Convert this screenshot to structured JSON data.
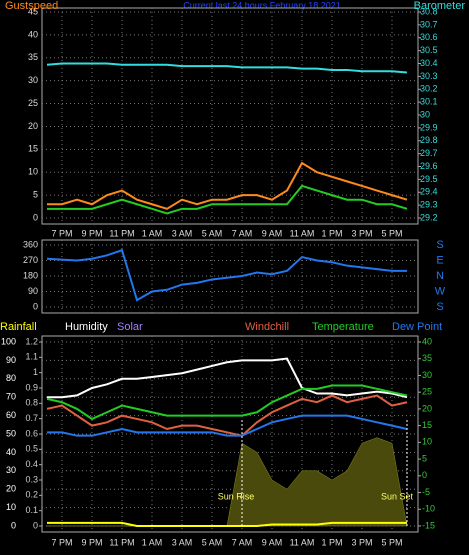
{
  "chart_data": [
    {
      "type": "line",
      "title": "Current last 24 hours February 18 2021",
      "categories": [
        null,
        "7 PM",
        null,
        "9 PM",
        null,
        "11 PM",
        null,
        "1 AM",
        null,
        "3 AM",
        null,
        "5 AM",
        null,
        "7 AM",
        null,
        "9 AM",
        null,
        "11 AM",
        null,
        "1 PM",
        null,
        "3 PM",
        null,
        "5 PM",
        null
      ],
      "ylim": [
        0,
        45
      ],
      "yticks": [
        0,
        5,
        10,
        15,
        20,
        25,
        30,
        35,
        40,
        45
      ],
      "y2lim": [
        29.2,
        30.8
      ],
      "y2ticks": [
        29.2,
        29.3,
        29.4,
        29.5,
        29.6,
        29.7,
        29.8,
        29.9,
        30,
        30.1,
        30.2,
        30.3,
        30.4,
        30.5,
        30.6,
        30.7,
        30.8
      ],
      "grid": true,
      "series": [
        {
          "name": "Gustspeed",
          "color": "#ff8a1c",
          "values": [
            3,
            3,
            4,
            3,
            5,
            6,
            4,
            3,
            2,
            4,
            3,
            4,
            4,
            5,
            5,
            4,
            6,
            12,
            10,
            9,
            8,
            7,
            6,
            5,
            4
          ]
        },
        {
          "color": "#22cc22",
          "values": [
            2,
            2,
            2,
            2,
            3,
            4,
            3,
            2,
            1,
            2,
            2,
            3,
            3,
            3,
            3,
            3,
            3,
            7,
            6,
            5,
            4,
            4,
            3,
            3,
            2
          ]
        },
        {
          "name": "Barometer",
          "color": "#33dddd",
          "axis": "y2",
          "values": [
            30.39,
            30.4,
            30.4,
            30.4,
            30.4,
            30.39,
            30.39,
            30.39,
            30.39,
            30.38,
            30.38,
            30.38,
            30.38,
            30.37,
            30.37,
            30.37,
            30.37,
            30.36,
            30.36,
            30.35,
            30.35,
            30.34,
            30.34,
            30.34,
            30.33
          ]
        }
      ]
    },
    {
      "type": "line",
      "ylim": [
        0,
        360
      ],
      "yticks": [
        0,
        90,
        180,
        270,
        360
      ],
      "grid": true,
      "compass": [
        "S",
        "E",
        "N",
        "W",
        "S"
      ],
      "series": [
        {
          "color": "#2277ee",
          "values": [
            280,
            275,
            270,
            280,
            300,
            330,
            40,
            90,
            100,
            130,
            140,
            160,
            170,
            180,
            200,
            190,
            210,
            290,
            270,
            260,
            240,
            230,
            220,
            210,
            210
          ]
        }
      ]
    },
    {
      "type": "line",
      "categories": [
        null,
        "7 PM",
        null,
        "9 PM",
        null,
        "11 PM",
        null,
        "1 AM",
        null,
        "3 AM",
        null,
        "5 AM",
        null,
        "7 AM",
        null,
        "9 AM",
        null,
        "11 AM",
        null,
        "1 PM",
        null,
        "3 PM",
        null,
        "5 PM",
        null
      ],
      "ylim": [
        0,
        100
      ],
      "yticks": [
        0,
        10,
        20,
        30,
        40,
        50,
        60,
        70,
        80,
        90,
        100
      ],
      "y3lim": [
        0,
        1.2
      ],
      "y3ticks": [
        0,
        0.1,
        0.2,
        0.3,
        0.4,
        0.5,
        0.6,
        0.7,
        0.8,
        0.9,
        1,
        1.1,
        1.2
      ],
      "y2lim": [
        -15,
        40
      ],
      "y2ticks": [
        -15,
        -10,
        -5,
        0,
        5,
        10,
        15,
        20,
        25,
        30,
        35,
        40
      ],
      "grid": true,
      "sunrise": "Sun Rise",
      "sunset": "Sun Set",
      "series": [
        {
          "name": "Solar",
          "type": "area",
          "color": "#4a4a0c",
          "label_color": "#a080ff",
          "values": [
            0,
            0,
            0,
            0,
            0,
            0,
            0,
            0,
            0,
            0,
            0,
            0,
            0,
            45,
            40,
            25,
            20,
            30,
            30,
            25,
            30,
            45,
            48,
            45,
            0
          ]
        },
        {
          "name": "Rainfall",
          "color": "#ffff00",
          "axis": "y3",
          "values": [
            0.02,
            0.02,
            0.02,
            0.02,
            0.02,
            0.02,
            0,
            0,
            0,
            0,
            0,
            0,
            0,
            0,
            0,
            0.01,
            0.01,
            0.01,
            0.01,
            0.02,
            0.02,
            0.02,
            0.02,
            0.02,
            0.02
          ]
        },
        {
          "name": "Humidity",
          "color": "#ffffff",
          "values": [
            70,
            70,
            71,
            75,
            77,
            80,
            80,
            81,
            82,
            83,
            85,
            87,
            89,
            90,
            90,
            90,
            91,
            75,
            72,
            72,
            71,
            72,
            73,
            72,
            70
          ]
        },
        {
          "name": "Windchill",
          "color": "#e06040",
          "axis": "y2",
          "values": [
            20,
            21,
            18,
            15,
            16,
            18,
            17,
            16,
            14,
            15,
            15,
            14,
            13,
            12,
            16,
            19,
            21,
            23,
            22,
            24,
            22,
            23,
            24,
            21,
            22
          ]
        },
        {
          "name": "Temperature",
          "color": "#22cc22",
          "axis": "y2",
          "values": [
            23,
            22,
            20,
            17,
            19,
            21,
            20,
            19,
            18,
            18,
            18,
            18,
            18,
            18,
            19,
            22,
            24,
            26,
            26,
            27,
            27,
            27,
            26,
            25,
            24
          ]
        },
        {
          "name": "Dew Point",
          "color": "#2277ee",
          "axis": "y2",
          "values": [
            13,
            13,
            12,
            12,
            13,
            14,
            13,
            13,
            13,
            13,
            13,
            13,
            12,
            12,
            14,
            16,
            17,
            18,
            18,
            18,
            18,
            17,
            16,
            15,
            14
          ]
        }
      ]
    }
  ]
}
